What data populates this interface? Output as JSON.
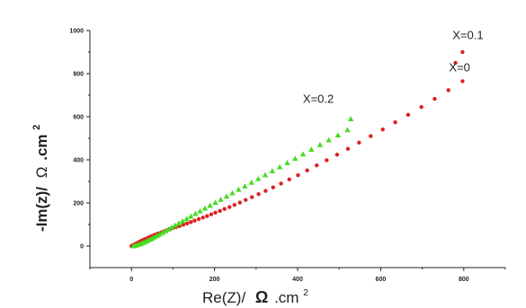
{
  "chart_data": {
    "type": "scatter",
    "xlabel": "Re(Z)/",
    "xlabel_symbol": "Ω",
    "xlabel_unit": ".cm",
    "xlabel_exp": "2",
    "ylabel": "-Im(z)/",
    "ylabel_symbol": "Ω",
    "ylabel_unit": ".cm",
    "ylabel_exp": "2",
    "xlim": [
      -100,
      900
    ],
    "ylim": [
      -100,
      1000
    ],
    "x_ticks": [
      0,
      200,
      400,
      600,
      800
    ],
    "y_ticks": [
      0,
      200,
      400,
      600,
      800,
      1000
    ],
    "grid": false,
    "annotations": [
      {
        "text": "X=0.1",
        "x": 810,
        "y": 960
      },
      {
        "text": "X=0",
        "x": 790,
        "y": 810
      },
      {
        "text": "X=0.2",
        "x": 450,
        "y": 665
      }
    ],
    "series": [
      {
        "color": "#e02020",
        "marker": "circle",
        "points": [
          [
            0,
            0
          ],
          [
            3,
            3
          ],
          [
            6,
            6
          ],
          [
            9,
            9
          ],
          [
            12,
            12
          ],
          [
            15,
            15
          ],
          [
            18,
            18
          ],
          [
            21,
            21
          ],
          [
            24,
            24
          ],
          [
            27,
            27
          ],
          [
            30,
            30
          ],
          [
            34,
            33
          ],
          [
            38,
            36
          ],
          [
            42,
            40
          ],
          [
            46,
            44
          ],
          [
            50,
            47
          ],
          [
            55,
            51
          ],
          [
            60,
            55
          ],
          [
            66,
            59
          ],
          [
            72,
            63
          ],
          [
            78,
            68
          ],
          [
            85,
            73
          ],
          [
            92,
            78
          ],
          [
            100,
            83
          ],
          [
            108,
            88
          ],
          [
            116,
            93
          ],
          [
            125,
            99
          ],
          [
            134,
            105
          ],
          [
            143,
            111
          ],
          [
            152,
            118
          ],
          [
            162,
            125
          ],
          [
            172,
            132
          ],
          [
            182,
            139
          ],
          [
            192,
            147
          ],
          [
            202,
            155
          ],
          [
            213,
            163
          ],
          [
            224,
            172
          ],
          [
            236,
            181
          ],
          [
            248,
            191
          ],
          [
            261,
            202
          ],
          [
            275,
            214
          ],
          [
            290,
            227
          ],
          [
            306,
            241
          ],
          [
            323,
            256
          ],
          [
            341,
            272
          ],
          [
            360,
            290
          ],
          [
            380,
            309
          ],
          [
            401,
            329
          ],
          [
            423,
            351
          ],
          [
            446,
            374
          ],
          [
            470,
            398
          ],
          [
            495,
            424
          ],
          [
            521,
            451
          ],
          [
            548,
            480
          ],
          [
            576,
            510
          ],
          [
            605,
            541
          ],
          [
            635,
            574
          ],
          [
            666,
            609
          ],
          [
            698,
            645
          ],
          [
            730,
            683
          ],
          [
            763,
            723
          ],
          [
            797,
            765
          ],
          [
            780,
            850
          ],
          [
            797,
            900
          ]
        ]
      },
      {
        "color": "#44dd22",
        "marker": "triangle",
        "points": [
          [
            5,
            0
          ],
          [
            10,
            3
          ],
          [
            15,
            6
          ],
          [
            20,
            9
          ],
          [
            25,
            13
          ],
          [
            30,
            17
          ],
          [
            35,
            21
          ],
          [
            40,
            26
          ],
          [
            45,
            31
          ],
          [
            50,
            36
          ],
          [
            56,
            42
          ],
          [
            62,
            48
          ],
          [
            68,
            55
          ],
          [
            75,
            62
          ],
          [
            82,
            70
          ],
          [
            89,
            78
          ],
          [
            97,
            87
          ],
          [
            105,
            96
          ],
          [
            114,
            106
          ],
          [
            123,
            116
          ],
          [
            133,
            127
          ],
          [
            143,
            138
          ],
          [
            154,
            150
          ],
          [
            165,
            162
          ],
          [
            177,
            175
          ],
          [
            189,
            188
          ],
          [
            202,
            202
          ],
          [
            215,
            216
          ],
          [
            229,
            231
          ],
          [
            243,
            246
          ],
          [
            258,
            262
          ],
          [
            273,
            278
          ],
          [
            289,
            295
          ],
          [
            305,
            312
          ],
          [
            322,
            330
          ],
          [
            339,
            348
          ],
          [
            357,
            367
          ],
          [
            375,
            386
          ],
          [
            394,
            406
          ],
          [
            413,
            427
          ],
          [
            433,
            448
          ],
          [
            454,
            470
          ],
          [
            475,
            492
          ],
          [
            497,
            515
          ],
          [
            520,
            539
          ],
          [
            528,
            590
          ]
        ]
      }
    ]
  }
}
